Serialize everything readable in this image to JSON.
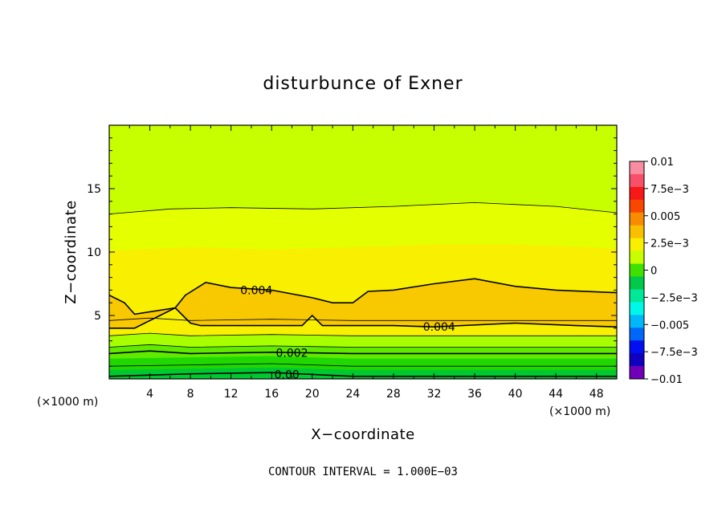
{
  "chart_data": {
    "type": "heatmap",
    "title": "disturbunce of Exner",
    "xlabel": "X−coordinate",
    "ylabel": "Z−coordinate",
    "x_unit": "(×1000 m)",
    "z_unit": "(×1000 m)",
    "xlim": [
      0,
      50
    ],
    "ylim": [
      0,
      20
    ],
    "x_ticks": [
      4,
      8,
      12,
      16,
      20,
      24,
      28,
      32,
      36,
      40,
      44,
      48
    ],
    "y_ticks": [
      5,
      10,
      15
    ],
    "footnote": "CONTOUR INTERVAL = 1.000E−03",
    "colorbar": {
      "range": [
        -0.01,
        0.01
      ],
      "tick_labels": [
        "0.01",
        "7.5e−3",
        "0.005",
        "2.5e−3",
        "0",
        "−2.5e−3",
        "−0.005",
        "−7.5e−3",
        "−0.01"
      ],
      "colors": [
        "#f88ca0",
        "#f85068",
        "#f81818",
        "#f84800",
        "#f88c00",
        "#f8c000",
        "#f8f000",
        "#c8ff00",
        "#40e000",
        "#00c848",
        "#00e898",
        "#00f8e8",
        "#00b8f8",
        "#0068f8",
        "#0010f0",
        "#1000c0",
        "#7000b8"
      ]
    },
    "contours": [
      {
        "level": 0.004,
        "label": "0.004",
        "boundary_z_top": [
          [
            0,
            6.6
          ],
          [
            1.5,
            6.0
          ],
          [
            2.5,
            5.1
          ],
          [
            6.5,
            5.6
          ],
          [
            7.5,
            6.6
          ],
          [
            9.5,
            7.6
          ],
          [
            12,
            7.2
          ],
          [
            16,
            7.0
          ],
          [
            20,
            6.4
          ],
          [
            22,
            6.0
          ],
          [
            24,
            6.0
          ],
          [
            25.5,
            6.9
          ],
          [
            28,
            7.0
          ],
          [
            32,
            7.5
          ],
          [
            36,
            7.9
          ],
          [
            40,
            7.3
          ],
          [
            44,
            7.0
          ],
          [
            50,
            6.8
          ]
        ],
        "boundary_z_bottom": [
          [
            0,
            4.0
          ],
          [
            2.5,
            4.0
          ],
          [
            6.5,
            5.6
          ],
          [
            8,
            4.4
          ],
          [
            9,
            4.2
          ],
          [
            12,
            4.2
          ],
          [
            16,
            4.2
          ],
          [
            19,
            4.2
          ],
          [
            20,
            5.0
          ],
          [
            21,
            4.2
          ],
          [
            28,
            4.2
          ],
          [
            32,
            4.1
          ],
          [
            40,
            4.4
          ],
          [
            46,
            4.2
          ],
          [
            50,
            4.1
          ]
        ]
      },
      {
        "level": 0.003,
        "label": "",
        "z": [
          [
            0,
            13.0
          ],
          [
            6,
            13.4
          ],
          [
            12,
            13.5
          ],
          [
            20,
            13.4
          ],
          [
            28,
            13.6
          ],
          [
            36,
            13.9
          ],
          [
            44,
            13.6
          ],
          [
            50,
            13.1
          ]
        ]
      },
      {
        "level": 0.002,
        "label": "0.002",
        "z": [
          [
            0,
            2.0
          ],
          [
            4,
            2.2
          ],
          [
            8,
            2.0
          ],
          [
            16,
            2.1
          ],
          [
            24,
            2.0
          ],
          [
            36,
            2.0
          ],
          [
            50,
            2.0
          ]
        ]
      },
      {
        "level": 0.001,
        "label": "",
        "z": [
          [
            0,
            1.0
          ],
          [
            8,
            1.1
          ],
          [
            16,
            1.2
          ],
          [
            24,
            1.0
          ],
          [
            36,
            1.0
          ],
          [
            50,
            1.0
          ]
        ]
      },
      {
        "level": 0.0,
        "label": "0.00",
        "z": [
          [
            0,
            0.2
          ],
          [
            8,
            0.4
          ],
          [
            16,
            0.5
          ],
          [
            24,
            0.2
          ],
          [
            36,
            0.2
          ],
          [
            50,
            0.2
          ]
        ]
      }
    ],
    "grid": false,
    "legend": "right"
  }
}
